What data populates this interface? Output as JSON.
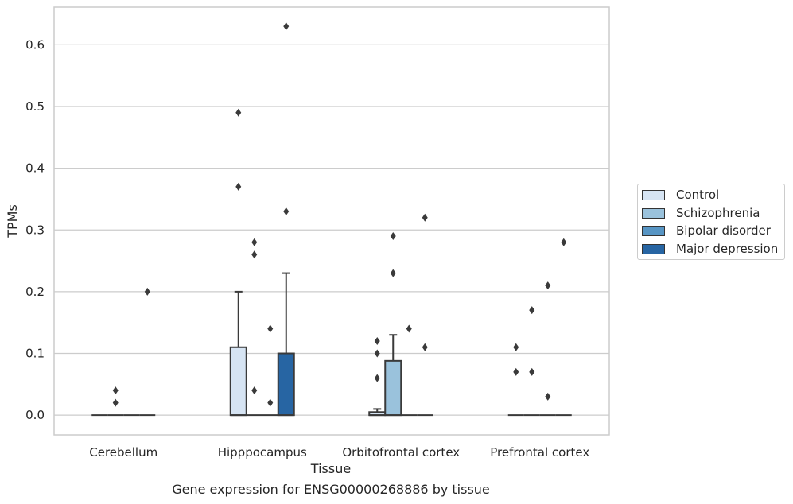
{
  "chart_data": {
    "type": "box",
    "xlabel": "Tissue",
    "ylabel": "TPMs",
    "categories": [
      "Cerebellum",
      "Hipppocampus",
      "Orbitofrontal cortex",
      "Prefrontal cortex"
    ],
    "ylim": [
      -0.032,
      0.661
    ],
    "yticks": [
      "0.0",
      "0.1",
      "0.2",
      "0.3",
      "0.4",
      "0.5",
      "0.6"
    ],
    "grid": "horizontal",
    "legend_position": "right",
    "series": [
      {
        "name": "Control",
        "color": "#d6e4f3",
        "boxes": [
          {
            "q1": 0,
            "median": 0,
            "q3": 0,
            "whisker_low": 0,
            "whisker_high": 0,
            "outliers": []
          },
          {
            "q1": 0,
            "median": 0,
            "q3": 0.11,
            "whisker_low": 0,
            "whisker_high": 0.2,
            "outliers": [
              0.49,
              0.37
            ]
          },
          {
            "q1": 0,
            "median": 0,
            "q3": 0.005,
            "whisker_low": 0,
            "whisker_high": 0.01,
            "outliers": [
              0.12,
              0.1,
              0.06
            ]
          },
          {
            "q1": 0,
            "median": 0,
            "q3": 0,
            "whisker_low": 0,
            "whisker_high": 0,
            "outliers": [
              0.11,
              0.07
            ]
          }
        ]
      },
      {
        "name": "Schizophrenia",
        "color": "#9ac2dc",
        "boxes": [
          {
            "q1": 0,
            "median": 0,
            "q3": 0,
            "whisker_low": 0,
            "whisker_high": 0,
            "outliers": [
              0.04,
              0.02
            ]
          },
          {
            "q1": 0,
            "median": 0,
            "q3": 0,
            "whisker_low": 0,
            "whisker_high": 0,
            "outliers": [
              0.28,
              0.26,
              0.04
            ]
          },
          {
            "q1": 0,
            "median": 0,
            "q3": 0.088,
            "whisker_low": 0,
            "whisker_high": 0.13,
            "outliers": [
              0.29,
              0.23
            ]
          },
          {
            "q1": 0,
            "median": 0,
            "q3": 0,
            "whisker_low": 0,
            "whisker_high": 0,
            "outliers": [
              0.17,
              0.07
            ]
          }
        ]
      },
      {
        "name": "Bipolar disorder",
        "color": "#5795c4",
        "boxes": [
          {
            "q1": 0,
            "median": 0,
            "q3": 0,
            "whisker_low": 0,
            "whisker_high": 0,
            "outliers": []
          },
          {
            "q1": 0,
            "median": 0,
            "q3": 0,
            "whisker_low": 0,
            "whisker_high": 0,
            "outliers": [
              0.14,
              0.02
            ]
          },
          {
            "q1": 0,
            "median": 0,
            "q3": 0,
            "whisker_low": 0,
            "whisker_high": 0,
            "outliers": [
              0.14
            ]
          },
          {
            "q1": 0,
            "median": 0,
            "q3": 0,
            "whisker_low": 0,
            "whisker_high": 0,
            "outliers": [
              0.21,
              0.03
            ]
          }
        ]
      },
      {
        "name": "Major depression",
        "color": "#2765a3",
        "boxes": [
          {
            "q1": 0,
            "median": 0,
            "q3": 0,
            "whisker_low": 0,
            "whisker_high": 0,
            "outliers": [
              0.2
            ]
          },
          {
            "q1": 0,
            "median": 0,
            "q3": 0.1,
            "whisker_low": 0,
            "whisker_high": 0.23,
            "outliers": [
              0.63,
              0.33
            ]
          },
          {
            "q1": 0,
            "median": 0,
            "q3": 0,
            "whisker_low": 0,
            "whisker_high": 0,
            "outliers": [
              0.32,
              0.11
            ]
          },
          {
            "q1": 0,
            "median": 0,
            "q3": 0,
            "whisker_low": 0,
            "whisker_high": 0,
            "outliers": [
              0.28
            ]
          }
        ]
      }
    ]
  },
  "caption": "Gene expression for ENSG00000268886 by tissue"
}
